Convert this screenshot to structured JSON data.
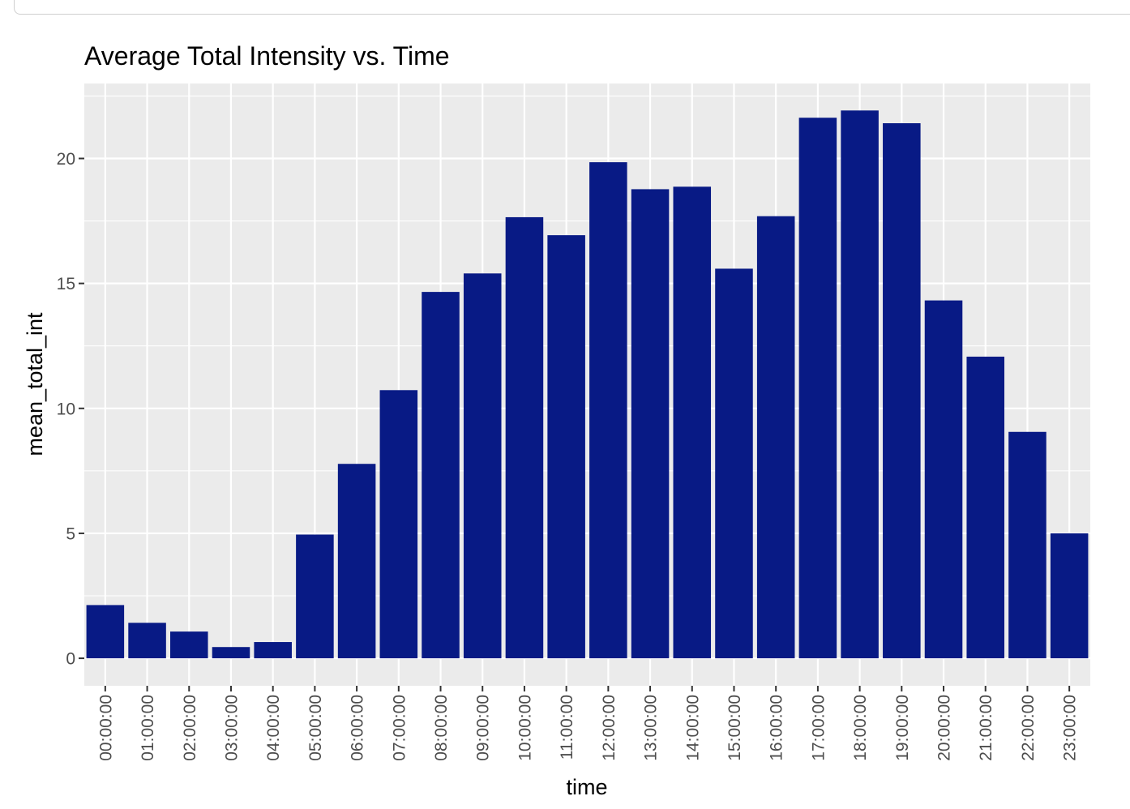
{
  "chart_data": {
    "type": "bar",
    "title": "Average Total Intensity vs. Time",
    "xlabel": "time",
    "ylabel": "mean_total_int",
    "categories": [
      "00:00:00",
      "01:00:00",
      "02:00:00",
      "03:00:00",
      "04:00:00",
      "05:00:00",
      "06:00:00",
      "07:00:00",
      "08:00:00",
      "09:00:00",
      "10:00:00",
      "11:00:00",
      "12:00:00",
      "13:00:00",
      "14:00:00",
      "15:00:00",
      "16:00:00",
      "17:00:00",
      "18:00:00",
      "19:00:00",
      "20:00:00",
      "21:00:00",
      "22:00:00",
      "23:00:00"
    ],
    "values": [
      2.13,
      1.42,
      1.07,
      0.45,
      0.65,
      4.95,
      7.78,
      10.73,
      14.66,
      15.4,
      17.65,
      16.93,
      19.85,
      18.77,
      18.87,
      15.59,
      17.69,
      21.63,
      21.92,
      21.41,
      14.32,
      12.07,
      9.06,
      5.0
    ],
    "ylim": [
      -1.1,
      23.0
    ],
    "yticks": [
      0,
      5,
      10,
      15,
      20
    ],
    "ytick_labels": [
      "0",
      "5",
      "10",
      "15",
      "20"
    ],
    "grid": true,
    "bar_color": "#081a85",
    "panel_color": "#ebebeb",
    "grid_color": "#ffffff"
  }
}
